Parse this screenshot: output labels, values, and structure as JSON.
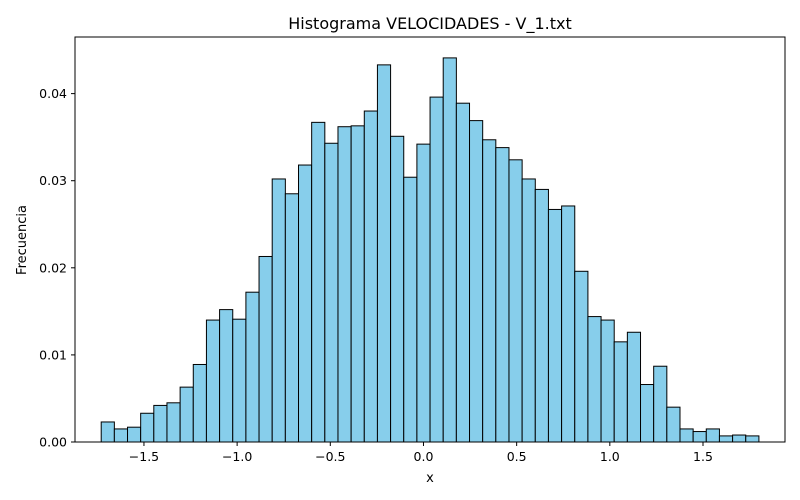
{
  "chart_data": {
    "type": "bar",
    "title": "Histograma VELOCIDADES - V_1.txt",
    "xlabel": "x",
    "ylabel": "Frecuencia",
    "xlim": [
      -1.87,
      1.94
    ],
    "ylim": [
      0,
      0.0465
    ],
    "grid": false,
    "legend": "none",
    "bar_color": "#87ceeb",
    "edge_color": "#000000",
    "bin_width": 0.0706,
    "x_ticks": [
      -1.5,
      -1.0,
      -0.5,
      0.0,
      0.5,
      1.0,
      1.5
    ],
    "x_tick_labels": [
      "−1.5",
      "−1.0",
      "−0.5",
      "0.0",
      "0.5",
      "1.0",
      "1.5"
    ],
    "y_ticks": [
      0.0,
      0.01,
      0.02,
      0.03,
      0.04
    ],
    "y_tick_labels": [
      "0.00",
      "0.01",
      "0.02",
      "0.03",
      "0.04"
    ],
    "bins": [
      {
        "left": -1.7294,
        "value": 0.0023
      },
      {
        "left": -1.6588,
        "value": 0.0015
      },
      {
        "left": -1.5882,
        "value": 0.0017
      },
      {
        "left": -1.5176,
        "value": 0.0033
      },
      {
        "left": -1.4471,
        "value": 0.0042
      },
      {
        "left": -1.3765,
        "value": 0.0045
      },
      {
        "left": -1.3059,
        "value": 0.0063
      },
      {
        "left": -1.2353,
        "value": 0.0089
      },
      {
        "left": -1.1647,
        "value": 0.014
      },
      {
        "left": -1.0941,
        "value": 0.0152
      },
      {
        "left": -1.0235,
        "value": 0.0141
      },
      {
        "left": -0.9529,
        "value": 0.0172
      },
      {
        "left": -0.8824,
        "value": 0.0213
      },
      {
        "left": -0.8118,
        "value": 0.0302
      },
      {
        "left": -0.7412,
        "value": 0.0285
      },
      {
        "left": -0.6706,
        "value": 0.0318
      },
      {
        "left": -0.6,
        "value": 0.0367
      },
      {
        "left": -0.5294,
        "value": 0.0343
      },
      {
        "left": -0.4588,
        "value": 0.0362
      },
      {
        "left": -0.3882,
        "value": 0.0363
      },
      {
        "left": -0.3176,
        "value": 0.038
      },
      {
        "left": -0.2471,
        "value": 0.0433
      },
      {
        "left": -0.1765,
        "value": 0.0351
      },
      {
        "left": -0.1059,
        "value": 0.0304
      },
      {
        "left": -0.0353,
        "value": 0.0342
      },
      {
        "left": 0.0353,
        "value": 0.0396
      },
      {
        "left": 0.1059,
        "value": 0.0441
      },
      {
        "left": 0.1765,
        "value": 0.0389
      },
      {
        "left": 0.2471,
        "value": 0.0369
      },
      {
        "left": 0.3176,
        "value": 0.0347
      },
      {
        "left": 0.3882,
        "value": 0.0338
      },
      {
        "left": 0.4588,
        "value": 0.0324
      },
      {
        "left": 0.5294,
        "value": 0.0302
      },
      {
        "left": 0.6,
        "value": 0.029
      },
      {
        "left": 0.6706,
        "value": 0.0267
      },
      {
        "left": 0.7412,
        "value": 0.0271
      },
      {
        "left": 0.8118,
        "value": 0.0196
      },
      {
        "left": 0.8824,
        "value": 0.0144
      },
      {
        "left": 0.9529,
        "value": 0.014
      },
      {
        "left": 1.0235,
        "value": 0.0115
      },
      {
        "left": 1.0941,
        "value": 0.0126
      },
      {
        "left": 1.1647,
        "value": 0.0066
      },
      {
        "left": 1.2353,
        "value": 0.0087
      },
      {
        "left": 1.3059,
        "value": 0.004
      },
      {
        "left": 1.3765,
        "value": 0.0015
      },
      {
        "left": 1.4471,
        "value": 0.0012
      },
      {
        "left": 1.5176,
        "value": 0.0015
      },
      {
        "left": 1.5882,
        "value": 0.0007
      },
      {
        "left": 1.6588,
        "value": 0.0008
      },
      {
        "left": 1.7294,
        "value": 0.0007
      }
    ]
  }
}
